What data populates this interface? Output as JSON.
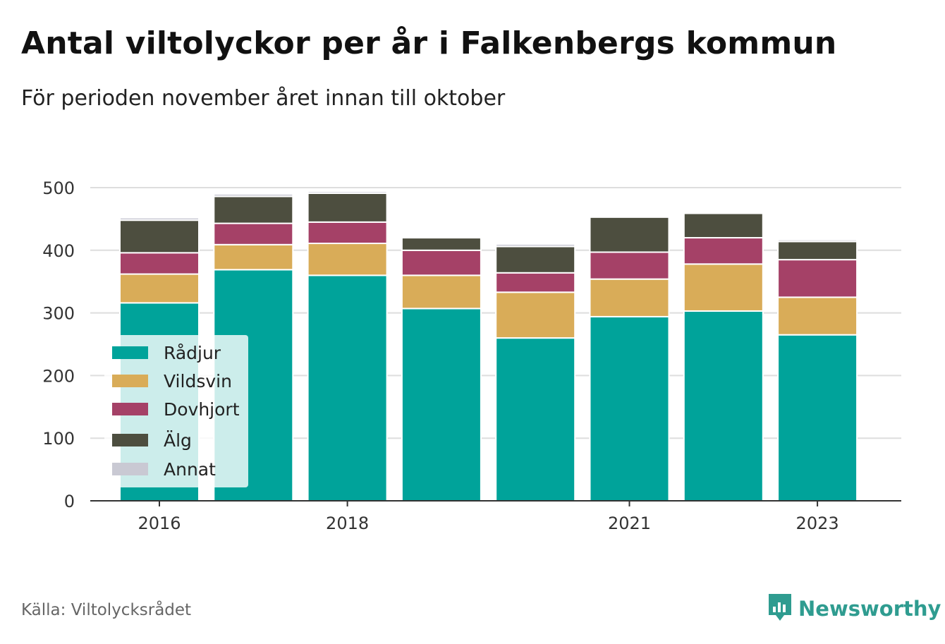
{
  "title": "Antal viltolyckor per år i Falkenbergs kommun",
  "subtitle": "För perioden november året innan till oktober",
  "source": "Källa: Viltolycksrådet",
  "brand": {
    "name": "Newsworthy",
    "icon": "newsworthy-logo-icon",
    "color": "#2f9c90"
  },
  "chart_data": {
    "type": "bar",
    "stacked": true,
    "categories": [
      "2016",
      "2017",
      "2018",
      "2019",
      "2020",
      "2021",
      "2022",
      "2023"
    ],
    "x_tick_labels": [
      "2016",
      "",
      "2018",
      "",
      "",
      "2021",
      "",
      "2023"
    ],
    "ylim": [
      0,
      500
    ],
    "yticks": [
      0,
      100,
      200,
      300,
      400,
      500
    ],
    "grid": true,
    "legend_position": "left",
    "series": [
      {
        "name": "Rådjur",
        "color": "#00a39a",
        "values": [
          316,
          369,
          360,
          307,
          260,
          294,
          303,
          265
        ]
      },
      {
        "name": "Vildsvin",
        "color": "#d9ac58",
        "values": [
          46,
          40,
          51,
          53,
          73,
          60,
          75,
          60
        ]
      },
      {
        "name": "Dovhjort",
        "color": "#a54167",
        "values": [
          34,
          34,
          34,
          40,
          31,
          43,
          42,
          60
        ]
      },
      {
        "name": "Älg",
        "color": "#4d4e3f",
        "values": [
          52,
          43,
          46,
          20,
          42,
          56,
          39,
          29
        ]
      },
      {
        "name": "Annat",
        "color": "#c9c9d3",
        "values": [
          4,
          4,
          3,
          2,
          4,
          2,
          2,
          3
        ]
      }
    ]
  }
}
